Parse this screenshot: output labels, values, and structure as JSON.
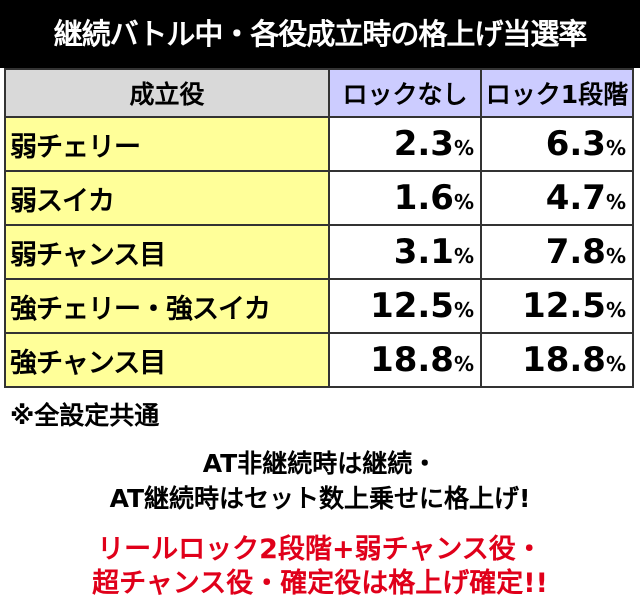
{
  "title": "継続バトル中・各役成立時の格上げ当選率",
  "table": {
    "header": [
      "成立役",
      "ロックなし",
      "ロック1段階"
    ],
    "rows": [
      [
        "弱チェリー",
        "2.3%",
        "6.3%"
      ],
      [
        "弱スイカ",
        "1.6%",
        "4.7%"
      ],
      [
        "弱チャンス目",
        "3.1%",
        "7.8%"
      ],
      [
        "強チェリー・強スイカ",
        "12.5%",
        "12.5%"
      ],
      [
        "強チャンス目",
        "18.8%",
        "18.8%"
      ]
    ]
  },
  "notes": {
    "common": "※全設定共通",
    "lines": [
      "AT非継続時は継続・",
      "AT継続時はセット数上乗せに格上げ!"
    ],
    "red_lines": [
      "リールロック2段階+弱チャンス役・",
      "超チャンス役・確定役は格上げ確定!!"
    ]
  }
}
